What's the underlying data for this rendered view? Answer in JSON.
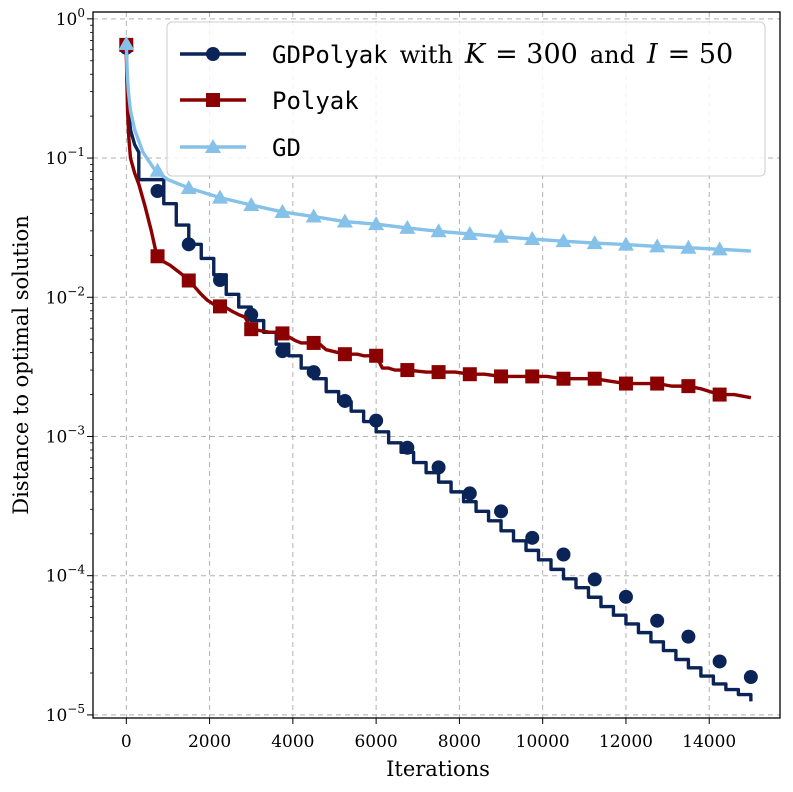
{
  "chart_data": {
    "type": "line",
    "xlabel": "Iterations",
    "ylabel": "Distance to optimal solution",
    "xlim": [
      -800,
      15700
    ],
    "ylim": [
      9.5e-06,
      1.12
    ],
    "yscale": "log",
    "grid": true,
    "legend_position": "top-right",
    "x_ticks": [
      0,
      2000,
      4000,
      6000,
      8000,
      10000,
      12000,
      14000
    ],
    "x_tick_labels": [
      "0",
      "2000",
      "4000",
      "6000",
      "8000",
      "10000",
      "12000",
      "14000"
    ],
    "y_ticks": [
      1,
      0.1,
      0.01,
      0.001,
      0.0001,
      1e-05
    ],
    "y_tick_labels": [
      {
        "base": "10",
        "exp": "0"
      },
      {
        "base": "10",
        "exp": "−1"
      },
      {
        "base": "10",
        "exp": "−2"
      },
      {
        "base": "10",
        "exp": "−3"
      },
      {
        "base": "10",
        "exp": "−4"
      },
      {
        "base": "10",
        "exp": "−5"
      }
    ],
    "series": [
      {
        "name": "GDPolyak with K = 300 and I = 50",
        "legend_parts": {
          "mono": "GDPolyak",
          "with": "with",
          "K": "K",
          "eq1": "= 300",
          "and": "and",
          "I": "I",
          "eq2": "= 50"
        },
        "color": "#0b2457",
        "marker": "circle",
        "step_every": 300,
        "x": [
          0,
          20,
          50,
          100,
          200,
          300,
          600,
          900,
          1200,
          1500,
          1800,
          2100,
          2400,
          2700,
          3000,
          3300,
          3600,
          3900,
          4200,
          4500,
          4800,
          5100,
          5400,
          5700,
          6000,
          6300,
          6600,
          6900,
          7200,
          7500,
          7800,
          8100,
          8400,
          8700,
          9000,
          9300,
          9600,
          9900,
          10200,
          10500,
          10800,
          11100,
          11400,
          11700,
          12000,
          12300,
          12600,
          12900,
          13200,
          13500,
          13800,
          14100,
          14400,
          14700,
          15000
        ],
        "y": [
          0.62,
          0.35,
          0.23,
          0.16,
          0.125,
          0.11,
          0.07,
          0.047,
          0.033,
          0.024,
          0.019,
          0.0145,
          0.0105,
          0.0085,
          0.0068,
          0.0056,
          0.0046,
          0.0038,
          0.0031,
          0.0026,
          0.0021,
          0.00178,
          0.00152,
          0.00128,
          0.00108,
          0.0009,
          0.00077,
          0.00065,
          0.00055,
          0.00047,
          0.0004,
          0.00034,
          0.00029,
          0.000248,
          0.00021,
          0.000178,
          0.000152,
          0.00013,
          0.000111,
          9.5e-05,
          8.2e-05,
          7e-05,
          6e-05,
          5.2e-05,
          4.5e-05,
          3.9e-05,
          3.35e-05,
          2.9e-05,
          2.5e-05,
          2.18e-05,
          1.9e-05,
          1.67e-05,
          1.52e-05,
          1.4e-05,
          1.25e-05
        ],
        "markers_x": [
          0,
          750,
          1500,
          2250,
          3000,
          3750,
          4500,
          5250,
          6000,
          6750,
          7500,
          8250,
          9000,
          9750,
          10500,
          11250,
          12000,
          12750,
          13500,
          14250,
          15000
        ],
        "markers_y": [
          0.62,
          0.058,
          0.024,
          0.0133,
          0.0075,
          0.0041,
          0.0029,
          0.0018,
          0.0013,
          0.00083,
          0.0006,
          0.00039,
          0.00029,
          0.000187,
          0.000142,
          9.4e-05,
          7.05e-05,
          4.75e-05,
          3.65e-05,
          2.42e-05,
          1.87e-05
        ]
      },
      {
        "name": "Polyak",
        "legend_parts": {
          "mono": "Polyak"
        },
        "color": "#8b0000",
        "marker": "square",
        "x": [
          0,
          5,
          15,
          30,
          60,
          100,
          200,
          300,
          450,
          600,
          700,
          750,
          900,
          1050,
          1200,
          1350,
          1500,
          1650,
          1800,
          1950,
          2100,
          2250,
          2400,
          2550,
          2700,
          2850,
          3000,
          3150,
          3300,
          3450,
          3600,
          3750,
          3900,
          4050,
          4200,
          4350,
          4500,
          4650,
          4800,
          4950,
          5100,
          5250,
          5400,
          5550,
          5700,
          5850,
          6000,
          6150,
          6300,
          6450,
          6600,
          6750,
          7200,
          7500,
          7900,
          8250,
          8600,
          9000,
          9400,
          9750,
          10100,
          10500,
          10900,
          11250,
          11600,
          12000,
          12400,
          12750,
          13100,
          13500,
          13800,
          14250,
          14600,
          15000
        ],
        "y": [
          0.65,
          0.5,
          0.35,
          0.22,
          0.14,
          0.1,
          0.078,
          0.065,
          0.045,
          0.03,
          0.022,
          0.0197,
          0.018,
          0.017,
          0.0157,
          0.0145,
          0.0132,
          0.0118,
          0.0105,
          0.0095,
          0.0089,
          0.0086,
          0.0084,
          0.0079,
          0.0075,
          0.0072,
          0.0059,
          0.0058,
          0.0057,
          0.0056,
          0.0056,
          0.0055,
          0.0052,
          0.0049,
          0.0047,
          0.0047,
          0.0047,
          0.0046,
          0.0042,
          0.0041,
          0.004,
          0.0039,
          0.0039,
          0.0039,
          0.0038,
          0.0038,
          0.0038,
          0.0031,
          0.0031,
          0.003,
          0.003,
          0.003,
          0.0029,
          0.0029,
          0.0029,
          0.0028,
          0.0028,
          0.0027,
          0.0027,
          0.0027,
          0.0027,
          0.0026,
          0.0026,
          0.0026,
          0.0025,
          0.0024,
          0.0024,
          0.0024,
          0.0023,
          0.0023,
          0.0022,
          0.002,
          0.002,
          0.0019
        ],
        "markers_x": [
          0,
          750,
          1500,
          2250,
          3000,
          3750,
          4500,
          5250,
          6000,
          6750,
          7500,
          8250,
          9000,
          9750,
          10500,
          11250,
          12000,
          12750,
          13500,
          14250
        ],
        "markers_y": [
          0.65,
          0.0197,
          0.0132,
          0.0086,
          0.0059,
          0.0055,
          0.0047,
          0.0039,
          0.0038,
          0.003,
          0.0029,
          0.0028,
          0.0027,
          0.0027,
          0.0026,
          0.0026,
          0.0024,
          0.0024,
          0.0023,
          0.002
        ]
      },
      {
        "name": "GD",
        "legend_parts": {
          "mono": "GD"
        },
        "color": "#85c1e9",
        "marker": "triangle",
        "x": [
          0,
          20,
          50,
          100,
          200,
          400,
          700,
          1000,
          1500,
          2250,
          3000,
          3750,
          4500,
          5250,
          6000,
          6750,
          7500,
          8250,
          9000,
          9750,
          10500,
          11250,
          12000,
          12750,
          13500,
          14250,
          15000
        ],
        "y": [
          0.66,
          0.42,
          0.3,
          0.22,
          0.16,
          0.11,
          0.081,
          0.07,
          0.061,
          0.052,
          0.046,
          0.041,
          0.038,
          0.035,
          0.0335,
          0.0315,
          0.0298,
          0.0285,
          0.0272,
          0.0262,
          0.0253,
          0.0245,
          0.0239,
          0.0232,
          0.0227,
          0.0221,
          0.0215
        ],
        "markers_x": [
          0,
          750,
          1500,
          2250,
          3000,
          3750,
          4500,
          5250,
          6000,
          6750,
          7500,
          8250,
          9000,
          9750,
          10500,
          11250,
          12000,
          12750,
          13500,
          14250
        ],
        "markers_y": [
          0.66,
          0.081,
          0.061,
          0.052,
          0.046,
          0.041,
          0.038,
          0.035,
          0.0335,
          0.0315,
          0.0298,
          0.0285,
          0.0272,
          0.0262,
          0.0253,
          0.0245,
          0.0239,
          0.0232,
          0.0227,
          0.0221
        ]
      }
    ]
  }
}
